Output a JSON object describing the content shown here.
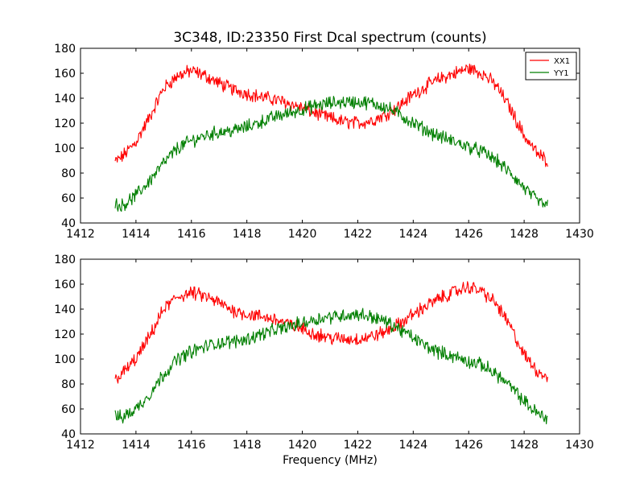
{
  "figure": {
    "title": "3C348, ID:23350 First Dcal spectrum (counts)",
    "xlabel": "Frequency (MHz)"
  },
  "colors": {
    "xx1": "#ff0000",
    "yy1": "#007f00",
    "axes": "#000000",
    "background": "#ffffff"
  },
  "chart_data": [
    {
      "type": "line",
      "panel": "top",
      "title": "3C348, ID:23350 First Dcal spectrum (counts)",
      "xlabel": "",
      "ylabel": "",
      "xlim": [
        1412,
        1430
      ],
      "ylim": [
        40,
        180
      ],
      "xticks": [
        1412,
        1414,
        1416,
        1418,
        1420,
        1422,
        1424,
        1426,
        1428,
        1430
      ],
      "yticks": [
        40,
        60,
        80,
        100,
        120,
        140,
        160,
        180
      ],
      "grid": false,
      "legend": "top-right",
      "x": [
        1413.25,
        1413.5,
        1414.0,
        1414.5,
        1415.0,
        1415.5,
        1416.0,
        1416.5,
        1417.0,
        1417.5,
        1418.0,
        1418.5,
        1419.0,
        1419.5,
        1420.0,
        1420.5,
        1421.0,
        1421.5,
        1422.0,
        1422.5,
        1423.0,
        1423.5,
        1424.0,
        1424.5,
        1425.0,
        1425.5,
        1426.0,
        1426.5,
        1427.0,
        1427.5,
        1428.0,
        1428.5,
        1428.85
      ],
      "series": [
        {
          "name": "XX1",
          "color": "#ff0000",
          "values": [
            89,
            93,
            105,
            125,
            148,
            158,
            162,
            158,
            152,
            147,
            144,
            141,
            139,
            136,
            132,
            128,
            124,
            121,
            120,
            122,
            127,
            134,
            143,
            150,
            156,
            160,
            164,
            160,
            150,
            132,
            110,
            95,
            90
          ]
        },
        {
          "name": "YY1",
          "color": "#007f00",
          "values": [
            55,
            54,
            62,
            74,
            88,
            100,
            106,
            110,
            113,
            114,
            117,
            121,
            125,
            128,
            131,
            134,
            136,
            137,
            137,
            136,
            133,
            127,
            120,
            114,
            109,
            105,
            101,
            97,
            90,
            80,
            68,
            57,
            54
          ]
        }
      ]
    },
    {
      "type": "line",
      "panel": "bottom",
      "title": "",
      "xlabel": "Frequency (MHz)",
      "ylabel": "",
      "xlim": [
        1412,
        1430
      ],
      "ylim": [
        40,
        180
      ],
      "xticks": [
        1412,
        1414,
        1416,
        1418,
        1420,
        1422,
        1424,
        1426,
        1428,
        1430
      ],
      "yticks": [
        40,
        60,
        80,
        100,
        120,
        140,
        160,
        180
      ],
      "grid": false,
      "legend": "none",
      "x": [
        1413.25,
        1413.5,
        1414.0,
        1414.5,
        1415.0,
        1415.5,
        1416.0,
        1416.5,
        1417.0,
        1417.5,
        1418.0,
        1418.5,
        1419.0,
        1419.5,
        1420.0,
        1420.5,
        1421.0,
        1421.5,
        1422.0,
        1422.5,
        1423.0,
        1423.5,
        1424.0,
        1424.5,
        1425.0,
        1425.5,
        1426.0,
        1426.5,
        1427.0,
        1427.5,
        1428.0,
        1428.5,
        1428.85
      ],
      "series": [
        {
          "color": "#ff0000",
          "values": [
            84,
            88,
            100,
            118,
            140,
            150,
            153,
            150,
            145,
            139,
            136,
            134,
            132,
            128,
            124,
            120,
            117,
            116,
            116,
            118,
            122,
            128,
            136,
            143,
            149,
            154,
            158,
            154,
            144,
            126,
            103,
            90,
            86
          ]
        },
        {
          "color": "#007f00",
          "values": [
            54,
            53,
            60,
            72,
            88,
            100,
            106,
            110,
            113,
            114,
            116,
            120,
            123,
            126,
            129,
            132,
            134,
            135,
            136,
            134,
            130,
            124,
            117,
            110,
            105,
            102,
            98,
            95,
            88,
            78,
            66,
            56,
            53
          ]
        }
      ]
    }
  ]
}
